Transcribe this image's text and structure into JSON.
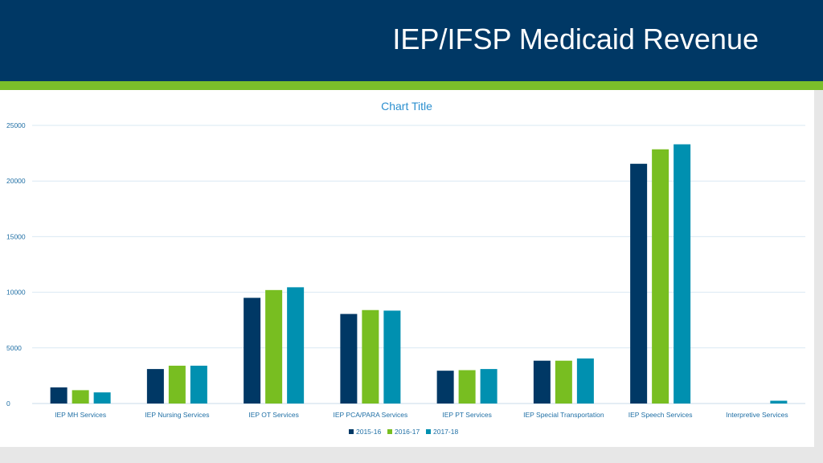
{
  "slide": {
    "title": "IEP/IFSP Medicaid Revenue"
  },
  "colors": {
    "header_bg": "#003865",
    "accent": "#7bbf2a",
    "series": [
      "#003865",
      "#78be21",
      "#0090b0"
    ],
    "gridline": "#d9e8f3",
    "tick_text": "#1f6fa5",
    "title_text": "#2b8fcf"
  },
  "chart_data": {
    "type": "bar",
    "title": "Chart Title",
    "xlabel": "",
    "ylabel": "",
    "ylim": [
      0,
      25000
    ],
    "yticks": [
      0,
      5000,
      10000,
      15000,
      20000,
      25000
    ],
    "grid": true,
    "legend_position": "bottom",
    "categories": [
      "IEP MH Services",
      "IEP Nursing  Services",
      "IEP OT Services",
      "IEP PCA/PARA Services",
      "IEP PT Services",
      "IEP Special Transportation",
      "IEP Speech Services",
      "Interpretive Services"
    ],
    "series": [
      {
        "name": "2015-16",
        "values": [
          1450,
          3100,
          9500,
          8050,
          2950,
          3850,
          21550,
          0
        ]
      },
      {
        "name": "2016-17",
        "values": [
          1200,
          3400,
          10200,
          8400,
          3000,
          3850,
          22850,
          0
        ]
      },
      {
        "name": "2017-18",
        "values": [
          1000,
          3400,
          10450,
          8350,
          3100,
          4050,
          23300,
          250
        ]
      }
    ]
  }
}
